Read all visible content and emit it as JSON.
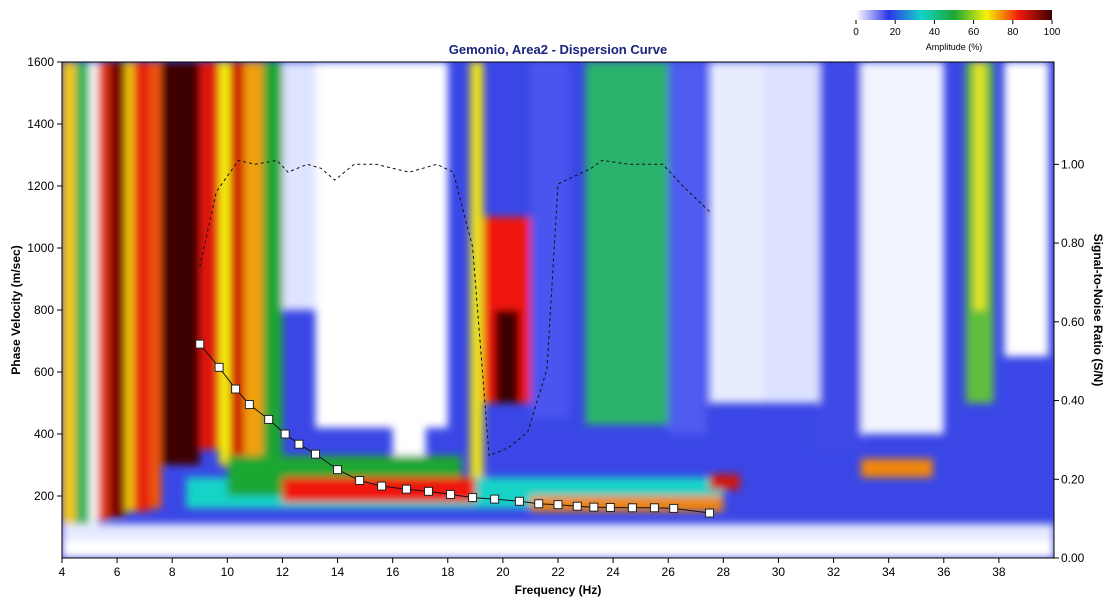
{
  "chart_data": {
    "type": "heatmap",
    "title": "Gemonio, Area2 - Dispersion Curve",
    "xlabel": "Frequency (Hz)",
    "ylabel": "Phase Velocity (m/sec)",
    "y2label": "Signal-to-Noise Ratio (S/N)",
    "xlim": [
      4,
      40
    ],
    "ylim": [
      0,
      1600
    ],
    "y2lim": [
      0,
      1.26
    ],
    "x_ticks": [
      4,
      6,
      8,
      10,
      12,
      14,
      16,
      18,
      20,
      22,
      24,
      26,
      28,
      30,
      32,
      34,
      36,
      38
    ],
    "y_ticks": [
      200,
      400,
      600,
      800,
      1000,
      1200,
      1400,
      1600
    ],
    "y2_ticks": [
      0.0,
      0.2,
      0.4,
      0.6,
      0.8,
      1.0
    ],
    "x_tick_labels": [
      "4",
      "6",
      "8",
      "10",
      "12",
      "14",
      "16",
      "18",
      "20",
      "22",
      "24",
      "26",
      "28",
      "30",
      "32",
      "34",
      "36",
      "38"
    ],
    "y_tick_labels": [
      "200",
      "400",
      "600",
      "800",
      "1000",
      "1200",
      "1400",
      "1600"
    ],
    "y2_tick_labels": [
      "0.00",
      "0.20",
      "0.40",
      "0.60",
      "0.80",
      "1.00"
    ],
    "colorbar": {
      "label": "Amplitude (%)",
      "ticks": [
        0,
        20,
        40,
        60,
        80,
        100
      ],
      "tick_labels": [
        "0",
        "20",
        "40",
        "60",
        "80",
        "100"
      ],
      "colors": [
        "#ffffff",
        "#2a35e8",
        "#13d3c8",
        "#1aa632",
        "#f5f20a",
        "#f0170a",
        "#3d0000"
      ]
    },
    "dispersion_curve": {
      "x": [
        9.0,
        9.7,
        10.3,
        10.8,
        11.5,
        12.1,
        12.6,
        13.2,
        14.0,
        14.8,
        15.6,
        16.5,
        17.3,
        18.1,
        18.9,
        19.7,
        20.6,
        21.3,
        22.0,
        22.7,
        23.3,
        23.9,
        24.7,
        25.5,
        26.2,
        27.5
      ],
      "y": [
        690,
        615,
        545,
        495,
        447,
        400,
        367,
        335,
        285,
        250,
        232,
        222,
        215,
        205,
        195,
        190,
        183,
        175,
        172,
        167,
        164,
        163,
        162,
        162,
        160,
        145
      ]
    },
    "snr_curve": {
      "x": [
        9.0,
        9.6,
        10.4,
        11.0,
        11.8,
        12.2,
        12.9,
        13.4,
        13.9,
        14.6,
        15.4,
        16.0,
        16.6,
        17.6,
        18.2,
        18.9,
        19.5,
        20.2,
        20.9,
        21.6,
        22.0,
        22.6,
        23.2,
        23.6,
        24.6,
        25.8,
        26.6,
        27.5
      ],
      "y": [
        0.74,
        0.93,
        1.01,
        1.0,
        1.01,
        0.98,
        1.0,
        0.99,
        0.96,
        1.0,
        1.0,
        0.99,
        0.98,
        1.0,
        0.98,
        0.79,
        0.26,
        0.28,
        0.32,
        0.48,
        0.95,
        0.97,
        0.99,
        1.01,
        1.0,
        1.0,
        0.94,
        0.88
      ]
    },
    "grid": false,
    "legend": "colorbar top-right"
  }
}
